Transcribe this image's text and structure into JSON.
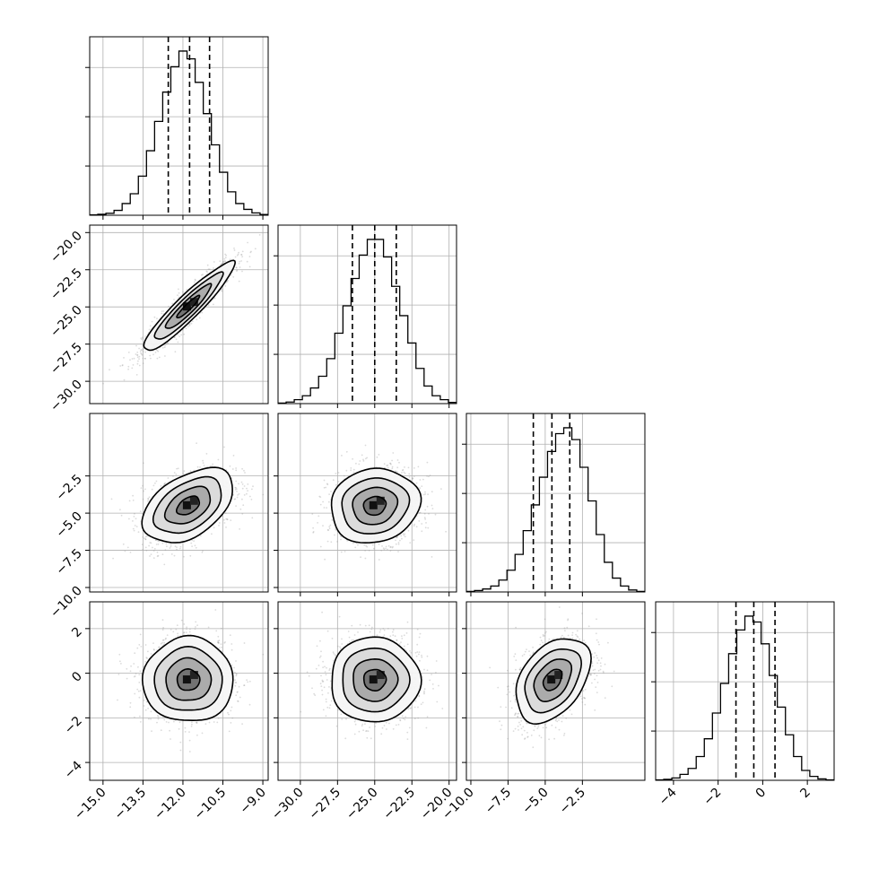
{
  "chart_data": {
    "type": "corner",
    "title": "",
    "grid": true,
    "parameters": [
      {
        "index": 0,
        "range": [
          -15.5,
          -8.8
        ],
        "ticks": [
          -15.0,
          -13.5,
          -12.0,
          -10.5,
          -9.0
        ],
        "tick_labels": [
          "−15.0",
          "−13.5",
          "−12.0",
          "−10.5",
          "−9.0"
        ]
      },
      {
        "index": 1,
        "range": [
          -31.5,
          -19.5
        ],
        "ticks": [
          -30.0,
          -27.5,
          -25.0,
          -22.5,
          -20.0
        ],
        "tick_labels": [
          "−30.0",
          "−27.5",
          "−25.0",
          "−22.5",
          "−20.0"
        ]
      },
      {
        "index": 2,
        "range": [
          -10.3,
          1.7
        ],
        "ticks": [
          -10.0,
          -7.5,
          -5.0,
          -2.5
        ],
        "tick_labels": [
          "−10.0",
          "−7.5",
          "−5.0",
          "−2.5"
        ]
      },
      {
        "index": 3,
        "range": [
          -4.8,
          3.2
        ],
        "ticks": [
          -4,
          -2,
          0,
          2
        ],
        "tick_labels": [
          "−4",
          "−2",
          "0",
          "2"
        ]
      }
    ],
    "marginals": [
      {
        "param": 0,
        "bin_edges": [
          -15.5,
          -8.8
        ],
        "counts": [
          0.2,
          0.5,
          1,
          2.5,
          6,
          11,
          20,
          33,
          48,
          63,
          76,
          84,
          80,
          68,
          52,
          36,
          22,
          12,
          6,
          3,
          1.2,
          0.4
        ],
        "quantiles": [
          -12.55,
          -11.75,
          -11.0
        ]
      },
      {
        "param": 1,
        "bin_edges": [
          -31.5,
          -19.5
        ],
        "counts": [
          0.3,
          0.8,
          2,
          4,
          8,
          14,
          23,
          36,
          50,
          64,
          76,
          84,
          84,
          75,
          60,
          45,
          31,
          18,
          9,
          4,
          2,
          0.6
        ],
        "quantiles": [
          -26.5,
          -25.0,
          -23.55
        ]
      },
      {
        "param": 2,
        "bin_edges": [
          -10.3,
          1.7
        ],
        "counts": [
          0.3,
          0.7,
          1.5,
          3,
          6,
          11,
          19,
          31,
          44,
          58,
          71,
          80,
          83,
          77,
          63,
          46,
          29,
          15,
          7,
          3,
          1,
          0.3
        ],
        "quantiles": [
          -5.8,
          -4.55,
          -3.35
        ]
      },
      {
        "param": 3,
        "bin_edges": [
          -4.8,
          3.2
        ],
        "counts": [
          0.2,
          0.5,
          1.2,
          3,
          6,
          12,
          21,
          34,
          49,
          64,
          76,
          83,
          80,
          69,
          53,
          37,
          23,
          12,
          5,
          2,
          0.7,
          0.2
        ],
        "quantiles": [
          -1.2,
          -0.4,
          0.55
        ]
      }
    ],
    "pairs": [
      {
        "x": 0,
        "y": 1,
        "mean": [
          -11.8,
          -25.0
        ],
        "sd": [
          0.85,
          1.5
        ],
        "corr": 0.93
      },
      {
        "x": 0,
        "y": 2,
        "mean": [
          -11.8,
          -4.5
        ],
        "sd": [
          0.85,
          1.25
        ],
        "corr": 0.45
      },
      {
        "x": 1,
        "y": 2,
        "mean": [
          -25.0,
          -4.5
        ],
        "sd": [
          1.5,
          1.25
        ],
        "corr": 0.1
      },
      {
        "x": 0,
        "y": 3,
        "mean": [
          -11.8,
          -0.3
        ],
        "sd": [
          0.85,
          0.95
        ],
        "corr": 0.0
      },
      {
        "x": 1,
        "y": 3,
        "mean": [
          -25.0,
          -0.3
        ],
        "sd": [
          1.5,
          0.95
        ],
        "corr": 0.0
      },
      {
        "x": 2,
        "y": 3,
        "mean": [
          -4.5,
          -0.3
        ],
        "sd": [
          1.25,
          0.95
        ],
        "corr": 0.4
      }
    ],
    "contour_levels_sigma": [
      0.5,
      1.0,
      1.5,
      2.0
    ]
  }
}
